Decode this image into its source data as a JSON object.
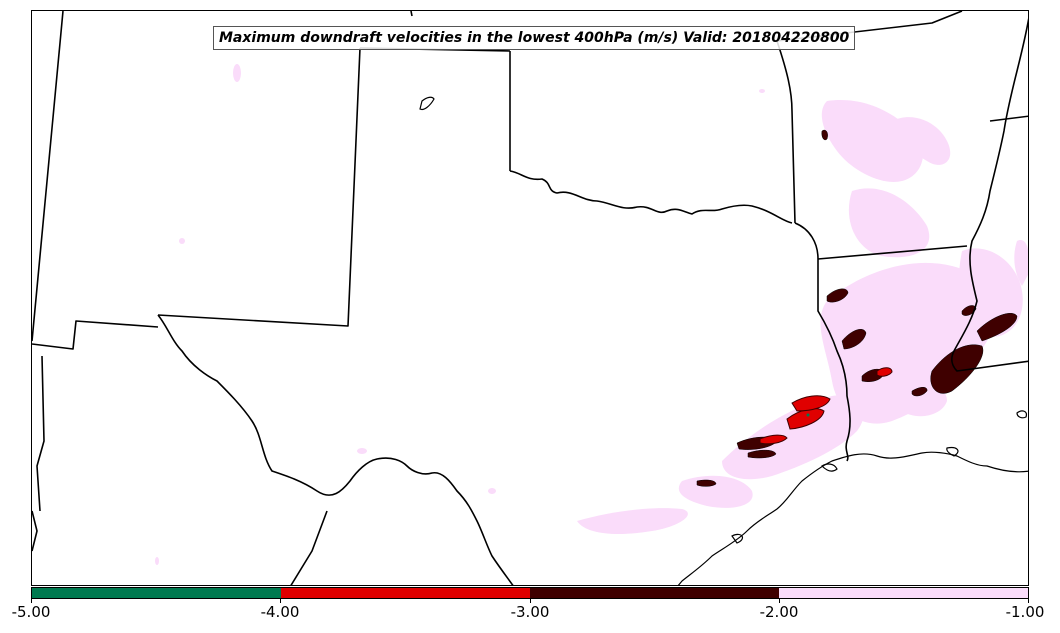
{
  "title": "Maximum downdraft velocities in the lowest 400hPa (m/s) Valid: 201804220800",
  "colorbar": {
    "segments": [
      {
        "from": "-5.00",
        "to": "-4.00",
        "color": "#007a50"
      },
      {
        "from": "-4.00",
        "to": "-3.00",
        "color": "#e00000"
      },
      {
        "from": "-3.00",
        "to": "-2.00",
        "color": "#3f0000"
      },
      {
        "from": "-2.00",
        "to": "-1.00",
        "color": "#fadcfa"
      }
    ],
    "tick_labels": [
      "-5.00",
      "-4.00",
      "-3.00",
      "-2.00",
      "-1.00"
    ]
  },
  "colors": {
    "light_pink": "#fadcfa",
    "dark_red": "#3f0000",
    "red": "#e00000",
    "green": "#007a50",
    "boundary": "#000000"
  }
}
